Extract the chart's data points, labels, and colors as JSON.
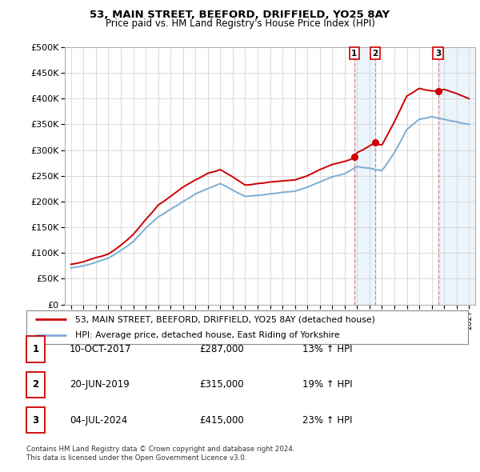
{
  "title": "53, MAIN STREET, BEEFORD, DRIFFIELD, YO25 8AY",
  "subtitle": "Price paid vs. HM Land Registry's House Price Index (HPI)",
  "legend_line1": "53, MAIN STREET, BEEFORD, DRIFFIELD, YO25 8AY (detached house)",
  "legend_line2": "HPI: Average price, detached house, East Riding of Yorkshire",
  "footer1": "Contains HM Land Registry data © Crown copyright and database right 2024.",
  "footer2": "This data is licensed under the Open Government Licence v3.0.",
  "transactions": [
    {
      "num": "1",
      "date": "10-OCT-2017",
      "price": "£287,000",
      "hpi": "13% ↑ HPI",
      "x": 2017.78
    },
    {
      "num": "2",
      "date": "20-JUN-2019",
      "price": "£315,000",
      "hpi": "19% ↑ HPI",
      "x": 2019.47
    },
    {
      "num": "3",
      "date": "04-JUL-2024",
      "price": "£415,000",
      "hpi": "23% ↑ HPI",
      "x": 2024.51
    }
  ],
  "hpi_color": "#7dadd4",
  "price_color": "#cc0000",
  "vline_color": "#cc0000",
  "vline_alpha": 0.45,
  "shade_color": "#d8eaf7",
  "shade_alpha": 0.5,
  "ylim": [
    0,
    500000
  ],
  "xlim": [
    1994.5,
    2027.5
  ],
  "yticks": [
    0,
    50000,
    100000,
    150000,
    200000,
    250000,
    300000,
    350000,
    400000,
    450000,
    500000
  ],
  "xtick_years": [
    1995,
    1996,
    1997,
    1998,
    1999,
    2000,
    2001,
    2002,
    2003,
    2004,
    2005,
    2006,
    2007,
    2008,
    2009,
    2010,
    2011,
    2012,
    2013,
    2014,
    2015,
    2016,
    2017,
    2018,
    2019,
    2020,
    2021,
    2022,
    2023,
    2024,
    2025,
    2026,
    2027
  ],
  "hpi_x": [
    1995,
    1995.5,
    1996,
    1996.5,
    1997,
    1997.5,
    1998,
    1998.5,
    1999,
    1999.5,
    2000,
    2000.5,
    2001,
    2001.5,
    2002,
    2002.5,
    2003,
    2003.5,
    2004,
    2004.5,
    2005,
    2005.5,
    2006,
    2006.5,
    2007,
    2007.5,
    2008,
    2008.5,
    2009,
    2009.5,
    2010,
    2010.5,
    2011,
    2011.5,
    2012,
    2012.5,
    2013,
    2013.5,
    2014,
    2014.5,
    2015,
    2015.5,
    2016,
    2016.5,
    2017,
    2017.5,
    2018,
    2018.5,
    2019,
    2019.5,
    2020,
    2020.5,
    2021,
    2021.5,
    2022,
    2022.5,
    2023,
    2023.5,
    2024,
    2024.5,
    2025,
    2025.5,
    2026,
    2026.5,
    2027
  ],
  "hpi_y": [
    71000,
    73000,
    75000,
    78000,
    82000,
    86000,
    90000,
    97000,
    105000,
    113000,
    122000,
    135000,
    148000,
    159000,
    170000,
    177000,
    185000,
    192000,
    200000,
    207000,
    215000,
    220000,
    225000,
    230000,
    235000,
    229000,
    222000,
    216000,
    210000,
    211000,
    212000,
    213000,
    215000,
    216000,
    218000,
    219000,
    220000,
    224000,
    228000,
    233000,
    238000,
    243000,
    248000,
    251000,
    254000,
    261000,
    268000,
    266000,
    265000,
    262000,
    260000,
    277000,
    295000,
    317000,
    340000,
    350000,
    360000,
    362000,
    365000,
    362000,
    360000,
    357000,
    355000,
    352000,
    350000
  ],
  "price_x": [
    1995,
    1995.5,
    1996,
    1996.5,
    1997,
    1997.5,
    1998,
    1998.5,
    1999,
    1999.5,
    2000,
    2000.5,
    2001,
    2001.5,
    2002,
    2002.5,
    2003,
    2003.5,
    2004,
    2004.5,
    2005,
    2005.5,
    2006,
    2006.5,
    2007,
    2007.5,
    2008,
    2008.5,
    2009,
    2009.5,
    2010,
    2010.5,
    2011,
    2011.5,
    2012,
    2012.5,
    2013,
    2013.5,
    2014,
    2014.5,
    2015,
    2015.5,
    2016,
    2016.5,
    2017,
    2017.5,
    2017.78,
    2018,
    2018.5,
    2019,
    2019.47,
    2019.5,
    2020,
    2020.5,
    2021,
    2021.5,
    2022,
    2022.5,
    2023,
    2023.5,
    2024,
    2024.51,
    2025,
    2025.5,
    2026,
    2026.5,
    2027
  ],
  "price_y": [
    78000,
    80000,
    83000,
    87000,
    91000,
    94000,
    98000,
    106000,
    115000,
    125000,
    136000,
    150000,
    165000,
    178000,
    193000,
    201000,
    210000,
    219000,
    228000,
    235000,
    242000,
    248000,
    255000,
    258000,
    262000,
    255000,
    248000,
    240000,
    232000,
    233000,
    235000,
    236000,
    238000,
    239000,
    240000,
    241000,
    242000,
    246000,
    250000,
    256000,
    262000,
    267000,
    272000,
    275000,
    278000,
    282000,
    287000,
    295000,
    301000,
    308000,
    315000,
    312000,
    310000,
    332000,
    355000,
    380000,
    405000,
    412000,
    420000,
    417000,
    415000,
    415000,
    418000,
    414000,
    410000,
    405000,
    400000
  ]
}
